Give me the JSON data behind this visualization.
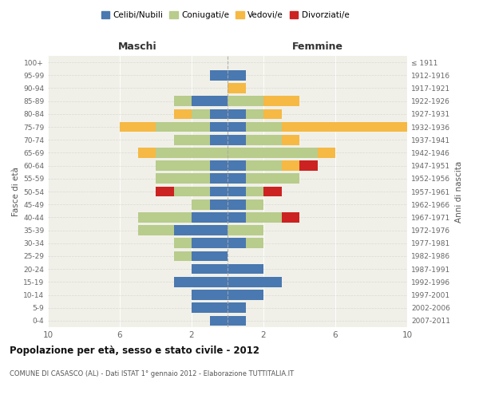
{
  "age_groups": [
    "0-4",
    "5-9",
    "10-14",
    "15-19",
    "20-24",
    "25-29",
    "30-34",
    "35-39",
    "40-44",
    "45-49",
    "50-54",
    "55-59",
    "60-64",
    "65-69",
    "70-74",
    "75-79",
    "80-84",
    "85-89",
    "90-94",
    "95-99",
    "100+"
  ],
  "birth_years": [
    "2007-2011",
    "2002-2006",
    "1997-2001",
    "1992-1996",
    "1987-1991",
    "1982-1986",
    "1977-1981",
    "1972-1976",
    "1967-1971",
    "1962-1966",
    "1957-1961",
    "1952-1956",
    "1947-1951",
    "1942-1946",
    "1937-1941",
    "1932-1936",
    "1927-1931",
    "1922-1926",
    "1917-1921",
    "1912-1916",
    "≤ 1911"
  ],
  "males": {
    "celibi": [
      1,
      2,
      2,
      3,
      2,
      2,
      2,
      3,
      2,
      1,
      1,
      1,
      1,
      0,
      1,
      1,
      1,
      2,
      0,
      1,
      0
    ],
    "coniugati": [
      0,
      0,
      0,
      0,
      0,
      1,
      1,
      2,
      3,
      1,
      2,
      3,
      3,
      4,
      2,
      3,
      1,
      1,
      0,
      0,
      0
    ],
    "vedovi": [
      0,
      0,
      0,
      0,
      0,
      0,
      0,
      0,
      0,
      0,
      0,
      0,
      0,
      1,
      0,
      2,
      1,
      0,
      0,
      0,
      0
    ],
    "divorziati": [
      0,
      0,
      0,
      0,
      0,
      0,
      0,
      0,
      0,
      0,
      1,
      0,
      0,
      0,
      0,
      0,
      0,
      0,
      0,
      0,
      0
    ]
  },
  "females": {
    "nubili": [
      1,
      1,
      2,
      3,
      2,
      0,
      1,
      0,
      1,
      1,
      1,
      1,
      1,
      0,
      1,
      1,
      1,
      0,
      0,
      1,
      0
    ],
    "coniugate": [
      0,
      0,
      0,
      0,
      0,
      0,
      1,
      2,
      2,
      1,
      1,
      3,
      2,
      5,
      2,
      2,
      1,
      2,
      0,
      0,
      0
    ],
    "vedove": [
      0,
      0,
      0,
      0,
      0,
      0,
      0,
      0,
      0,
      0,
      0,
      0,
      1,
      1,
      1,
      7,
      1,
      2,
      1,
      0,
      0
    ],
    "divorziate": [
      0,
      0,
      0,
      0,
      0,
      0,
      0,
      0,
      1,
      0,
      1,
      0,
      1,
      0,
      0,
      0,
      0,
      0,
      0,
      0,
      0
    ]
  },
  "colors": {
    "celibi_nubili": "#4a78b0",
    "coniugati": "#b8cc8c",
    "vedovi": "#f5b944",
    "divorziati": "#cc2222"
  },
  "title": "Popolazione per età, sesso e stato civile - 2012",
  "subtitle": "COMUNE DI CASASCO (AL) - Dati ISTAT 1° gennaio 2012 - Elaborazione TUTTITALIA.IT",
  "ylabel_left": "Fasce di età",
  "ylabel_right": "Anni di nascita",
  "xlabel_left": "Maschi",
  "xlabel_right": "Femmine",
  "xlim": 10,
  "background_color": "#ffffff",
  "plot_bg": "#f0f0e8",
  "grid_color": "#cccccc"
}
